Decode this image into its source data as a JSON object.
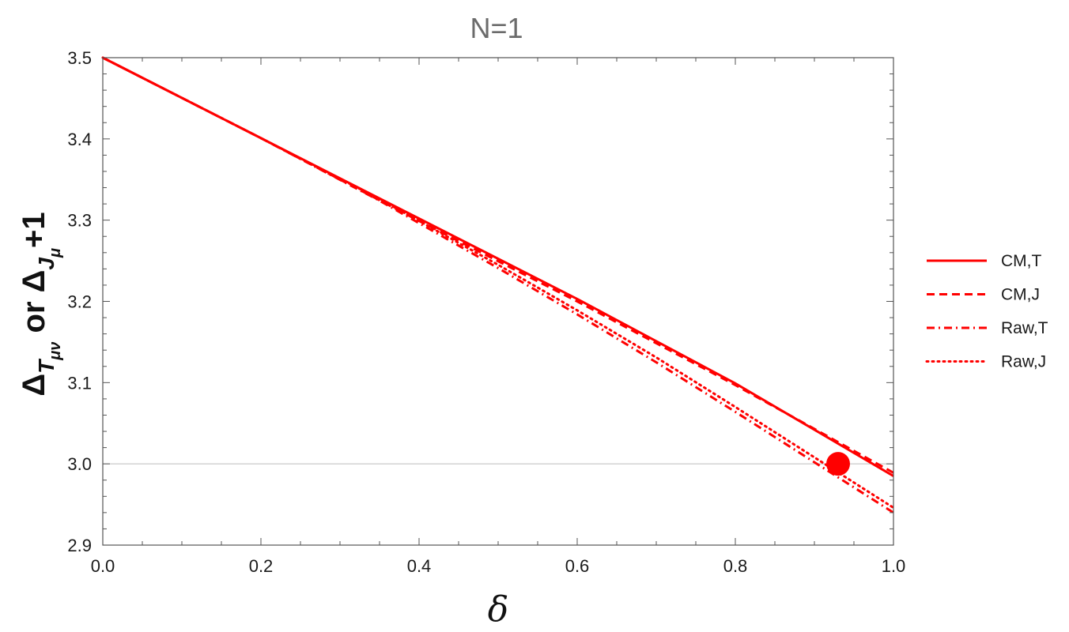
{
  "chart_data": {
    "type": "line",
    "title": "N=1",
    "xlabel": "δ",
    "ylabel_parts": {
      "delta1": "Δ",
      "sub1": "T",
      "sub1_index": "μν",
      "middle": " or ",
      "delta2": "Δ",
      "sub2": "J",
      "sub2_index": "μ",
      "suffix": "+1"
    },
    "xlim": [
      0,
      1
    ],
    "ylim": [
      2.9,
      3.5
    ],
    "x_ticks": [
      "0.0",
      "0.2",
      "0.4",
      "0.6",
      "0.8",
      "1.0"
    ],
    "y_ticks": [
      "2.9",
      "3.0",
      "3.1",
      "3.2",
      "3.3",
      "3.4",
      "3.5"
    ],
    "reference_line_y": 3.0,
    "grid": false,
    "legend_position": "right",
    "series": [
      {
        "name": "CM,T",
        "style": "solid",
        "x": [
          0,
          0.2,
          0.4,
          0.6,
          0.8,
          1.0
        ],
        "y": [
          3.5,
          3.401,
          3.302,
          3.203,
          3.099,
          2.985
        ]
      },
      {
        "name": "CM,J",
        "style": "dashed",
        "x": [
          0,
          0.2,
          0.4,
          0.6,
          0.8,
          1.0
        ],
        "y": [
          3.5,
          3.401,
          3.299,
          3.2,
          3.097,
          2.989
        ]
      },
      {
        "name": "Raw,T",
        "style": "dashdot",
        "x": [
          0,
          0.2,
          0.35,
          0.5,
          0.6,
          0.7,
          0.8,
          0.9,
          1.0
        ],
        "y": [
          3.5,
          3.401,
          3.324,
          3.241,
          3.184,
          3.125,
          3.064,
          3.002,
          2.94
        ]
      },
      {
        "name": "Raw,J",
        "style": "dotted",
        "x": [
          0,
          0.2,
          0.35,
          0.5,
          0.6,
          0.7,
          0.8,
          0.9,
          1.0
        ],
        "y": [
          3.5,
          3.401,
          3.326,
          3.245,
          3.189,
          3.131,
          3.07,
          3.008,
          2.946
        ]
      }
    ],
    "marker": {
      "x": 0.93,
      "y": 3.0
    },
    "colors": {
      "series": "#ff0000",
      "reference_line": "#bbbbbb",
      "frame": "#555555",
      "title": "#6b6b6b"
    }
  }
}
